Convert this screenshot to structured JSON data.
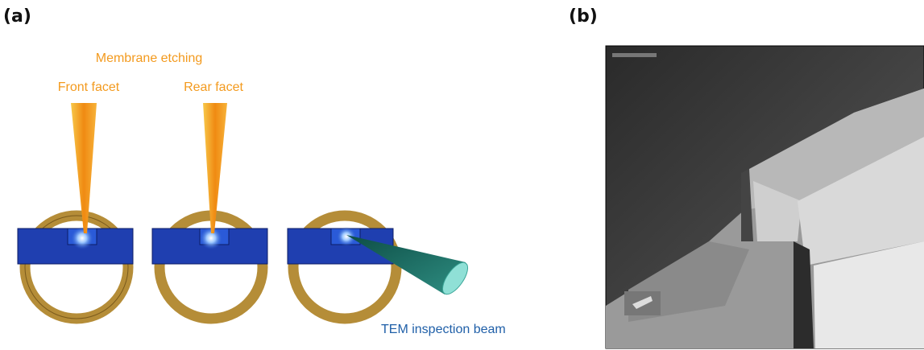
{
  "panels": {
    "a": "(a)",
    "b": "(b)"
  },
  "diagram": {
    "group_label": "Membrane etching",
    "steps": [
      "Front facet",
      "Rear facet"
    ],
    "beam_label": "TEM inspection beam"
  }
}
